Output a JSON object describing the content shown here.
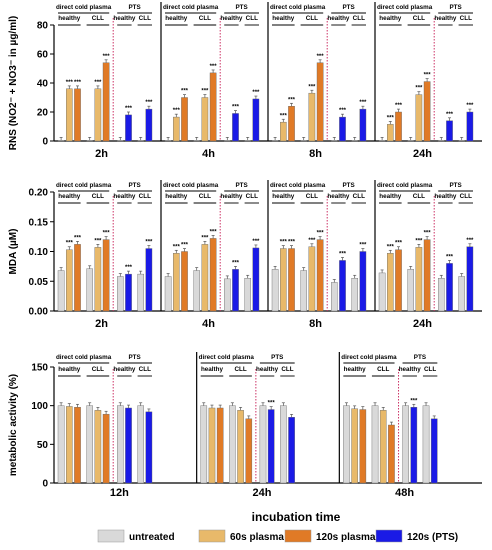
{
  "colors": {
    "untreated": "#d9d9d9",
    "p60": "#e8b96a",
    "p120": "#e07a26",
    "pts": "#1a1ae6",
    "marker": "#cc3366"
  },
  "chart_data": [
    {
      "type": "bar",
      "ylabel": "RNS (NO2⁻ + NO3⁻ in µg/ml)",
      "ylim": [
        0,
        80
      ],
      "yticks": [
        0,
        20,
        40,
        60,
        80
      ],
      "groups": [
        "2h",
        "4h",
        "8h",
        "24h"
      ],
      "headers": {
        "direct": "direct cold plasma",
        "pts": "PTS",
        "healthy": "healthy",
        "cll": "CLL"
      },
      "star": "***",
      "series": [
        {
          "name": "untreated",
          "values": [
            [
              0.5,
              0.5,
              0.5,
              0.5
            ],
            [
              0.5,
              0.5,
              0.5,
              0.5
            ],
            [
              0.5,
              0.5,
              0.5,
              0.5
            ],
            [
              0.5,
              0.5,
              0.5,
              0.5
            ]
          ]
        },
        {
          "name": "60s plasma",
          "values": [
            [
              36,
              36
            ],
            [
              16.5,
              30
            ],
            [
              13,
              33
            ],
            [
              11.5,
              32
            ]
          ]
        },
        {
          "name": "120s plasma",
          "values": [
            [
              36,
              54
            ],
            [
              30,
              47
            ],
            [
              24,
              54
            ],
            [
              20,
              41
            ]
          ]
        },
        {
          "name": "120s (PTS)",
          "values": [
            [
              18,
              22
            ],
            [
              19,
              29
            ],
            [
              16.5,
              22
            ],
            [
              14,
              20
            ]
          ]
        }
      ],
      "stars": true
    },
    {
      "type": "bar",
      "ylabel": "MDA (µM)",
      "ylim": [
        0,
        0.2
      ],
      "yticks": [
        0,
        0.05,
        0.1,
        0.15,
        0.2
      ],
      "ytick_labels": [
        "0.00",
        "0.05",
        "0.10",
        "0.15",
        "0.20"
      ],
      "groups": [
        "2h",
        "4h",
        "8h",
        "24h"
      ],
      "headers": {
        "direct": "direct cold plasma",
        "pts": "PTS",
        "healthy": "healthy",
        "cll": "CLL"
      },
      "star": "***",
      "series": [
        {
          "name": "untreated",
          "values": [
            [
              0.068,
              0.071,
              0.058,
              0.062
            ],
            [
              0.058,
              0.068,
              0.054,
              0.055
            ],
            [
              0.07,
              0.068,
              0.048,
              0.055
            ],
            [
              0.064,
              0.07,
              0.055,
              0.058
            ]
          ]
        },
        {
          "name": "60s plasma",
          "values": [
            [
              0.103,
              0.107
            ],
            [
              0.097,
              0.112
            ],
            [
              0.105,
              0.108
            ],
            [
              0.097,
              0.107
            ]
          ]
        },
        {
          "name": "120s plasma",
          "values": [
            [
              0.112,
              0.12
            ],
            [
              0.1,
              0.122
            ],
            [
              0.105,
              0.12
            ],
            [
              0.103,
              0.12
            ]
          ]
        },
        {
          "name": "120s (PTS)",
          "values": [
            [
              0.062,
              0.105
            ],
            [
              0.07,
              0.106
            ],
            [
              0.085,
              0.1
            ],
            [
              0.08,
              0.108
            ]
          ]
        }
      ],
      "stars": true
    },
    {
      "type": "bar",
      "ylabel": "metabolic activity (%)",
      "ylim": [
        0,
        150
      ],
      "yticks": [
        0,
        50,
        100,
        150
      ],
      "groups": [
        "12h",
        "24h",
        "48h"
      ],
      "headers": {
        "direct": "direct cold plasma",
        "pts": "PTS",
        "healthy": "healthy",
        "cll": "CLL"
      },
      "star": "***",
      "xlabel": "incubation time",
      "series": [
        {
          "name": "untreated",
          "values": [
            [
              100,
              100,
              100,
              100
            ],
            [
              100,
              100,
              100,
              100
            ],
            [
              100,
              100,
              100,
              100
            ]
          ]
        },
        {
          "name": "60s plasma",
          "values": [
            [
              99,
              94
            ],
            [
              97,
              94
            ],
            [
              96,
              94
            ]
          ]
        },
        {
          "name": "120s plasma",
          "values": [
            [
              98,
              89
            ],
            [
              97,
              83
            ],
            [
              95,
              75
            ]
          ]
        },
        {
          "name": "120s (PTS)",
          "values": [
            [
              97,
              92
            ],
            [
              95,
              85
            ],
            [
              98,
              83
            ]
          ]
        }
      ],
      "star_cells": [
        [
          1,
          2,
          1
        ],
        [
          1,
          2,
          3
        ],
        [
          2,
          2,
          1
        ],
        [
          2,
          2,
          3
        ]
      ]
    }
  ],
  "legend": {
    "entries": [
      "untreated",
      "60s plasma",
      "120s plasma",
      "120s (PTS)"
    ]
  }
}
